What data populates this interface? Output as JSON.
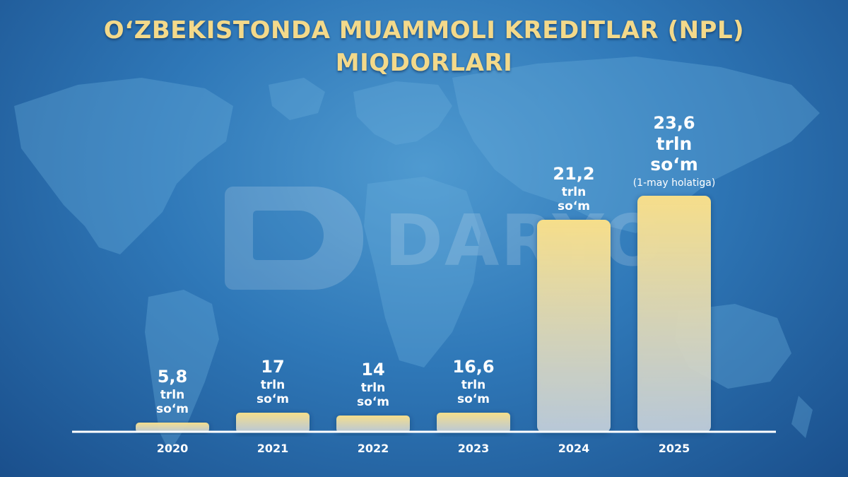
{
  "title_lines": [
    "O‘ZBEKISTONDA MUAMMOLI KREDITLAR (NPL)",
    "MIQDORLARI"
  ],
  "watermark": "DARYO",
  "colors": {
    "title": "#f3d98a",
    "bar_top": "#f6de8a",
    "bar_bottom": "#ccd7e2",
    "axis": "#ffffff"
  },
  "chart_data": {
    "type": "bar",
    "title": "O‘ZBEKISTONDA MUAMMOLI KREDITLAR (NPL) MIQDORLARI",
    "categories": [
      "2020",
      "2021",
      "2022",
      "2023",
      "2024",
      "2025"
    ],
    "values": [
      5.8,
      17,
      14,
      16.6,
      21.2,
      23.6
    ],
    "value_labels": [
      "5,8",
      "17",
      "14",
      "16,6",
      "21,2",
      "23,6"
    ],
    "unit_line1": "trln",
    "unit_line2": "so‘m",
    "notes": [
      "",
      "",
      "",
      "",
      "",
      "(1-may holatiga)"
    ],
    "xlabel": "",
    "ylabel": "",
    "grid": false,
    "legend": "none"
  }
}
